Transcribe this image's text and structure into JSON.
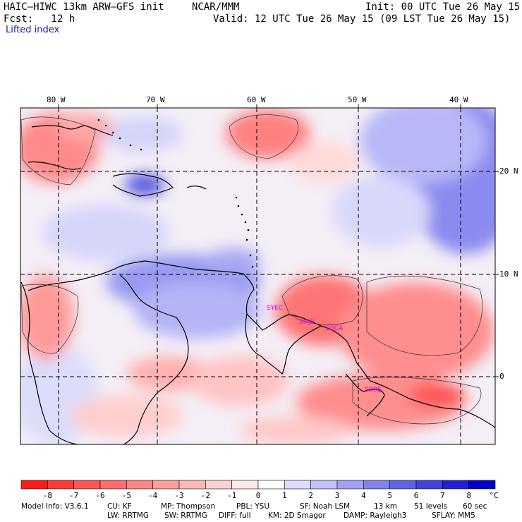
{
  "header": {
    "model": "HAIC–HIWC 13km ARW–GFS init",
    "center": "NCAR/MMM",
    "init": "Init: 00 UTC Tue 26 May 15",
    "fcst": "Fcst:   12 h",
    "valid": "Valid: 12 UTC Tue 26 May 15 (09 LST Tue 26 May 15)",
    "field": "Lifted index"
  },
  "map": {
    "lon_labels": [
      "80 W",
      "70 W",
      "60 W",
      "50 W",
      "40 W"
    ],
    "lat_labels": [
      "20 N",
      "10 N",
      "0"
    ],
    "stations": [
      "SYEC",
      "SMJP",
      "SOCA",
      "SBBE"
    ]
  },
  "colorbar": {
    "levels": [
      "-8",
      "-7",
      "-6",
      "-5",
      "-4",
      "-3",
      "-2",
      "-1",
      "0",
      "1",
      "2",
      "3",
      "4",
      "5",
      "6",
      "7",
      "8"
    ],
    "unit": "°C",
    "colors": [
      "#ff1a1a",
      "#ff3b3b",
      "#ff5656",
      "#ff6e6e",
      "#ff8686",
      "#ff9e9e",
      "#ffb8b8",
      "#ffd2d2",
      "#ffeaea",
      "#ffffff",
      "#dcdcff",
      "#c0c0fa",
      "#a0a0f5",
      "#8282ee",
      "#6262e6",
      "#4242dc",
      "#2020d2",
      "#0000c8"
    ]
  },
  "footer": {
    "line1": [
      "Model Info: V3.6.1",
      "CU: KF",
      "MP: Thompson",
      "PBL: YSU",
      "SF: Noah LSM",
      "13 km",
      "51 levels",
      "60 sec"
    ],
    "line2": [
      "LW: RRTMG",
      "SW: RRTMG",
      "DIFF: full",
      "KM: 2D Smagor",
      "DAMP: Rayleigh3",
      "SFLAY: MM5"
    ]
  }
}
